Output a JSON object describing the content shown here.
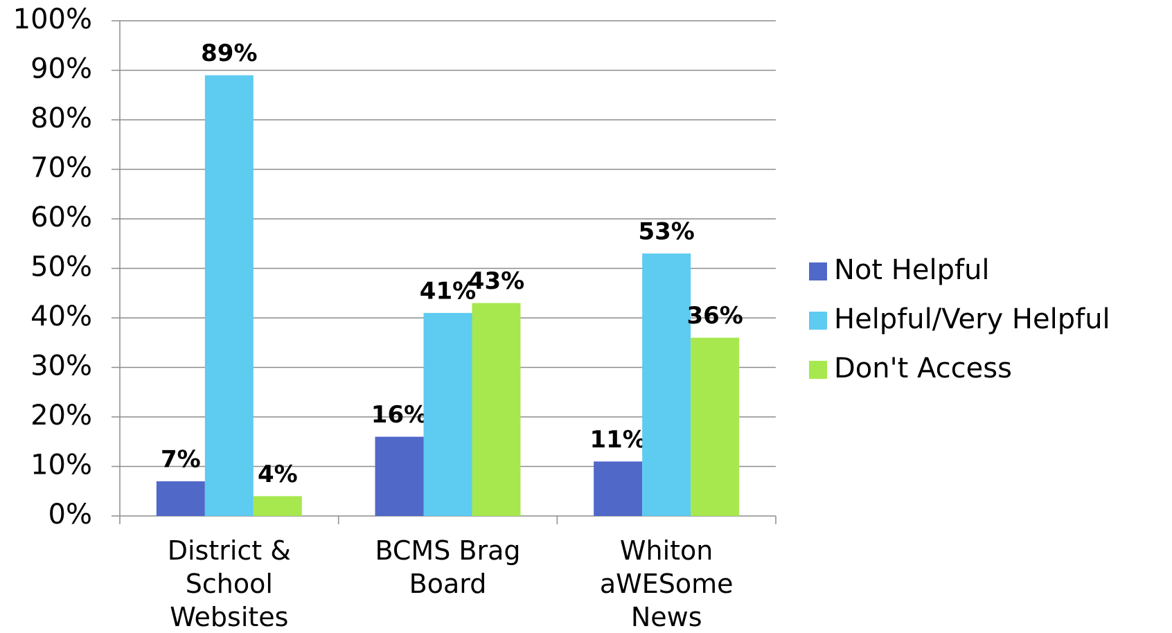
{
  "chart_data": {
    "type": "bar",
    "categories": [
      "District & School Websites",
      "BCMS Brag Board",
      "Whiton aWESome News"
    ],
    "series": [
      {
        "name": "Not Helpful",
        "color": "#5068c8",
        "values": [
          7,
          16,
          11
        ],
        "value_labels": [
          "7%",
          "16%",
          "11%"
        ]
      },
      {
        "name": "Helpful/Very Helpful",
        "color": "#5ecbf0",
        "values": [
          89,
          41,
          53
        ],
        "value_labels": [
          "89%",
          "41%",
          "53%"
        ]
      },
      {
        "name": "Don't Access",
        "color": "#a6e84e",
        "values": [
          4,
          43,
          36
        ],
        "value_labels": [
          "4%",
          "43%",
          "36%"
        ]
      }
    ],
    "ylim": [
      0,
      100
    ],
    "yticks": [
      {
        "value": 0,
        "label": "0%"
      },
      {
        "value": 10,
        "label": "10%"
      },
      {
        "value": 20,
        "label": "20%"
      },
      {
        "value": 30,
        "label": "30%"
      },
      {
        "value": 40,
        "label": "40%"
      },
      {
        "value": 50,
        "label": "50%"
      },
      {
        "value": 60,
        "label": "60%"
      },
      {
        "value": 70,
        "label": "70%"
      },
      {
        "value": 80,
        "label": "80%"
      },
      {
        "value": 90,
        "label": "90%"
      },
      {
        "value": 100,
        "label": "100%"
      }
    ],
    "grid": true,
    "legend": "right"
  }
}
